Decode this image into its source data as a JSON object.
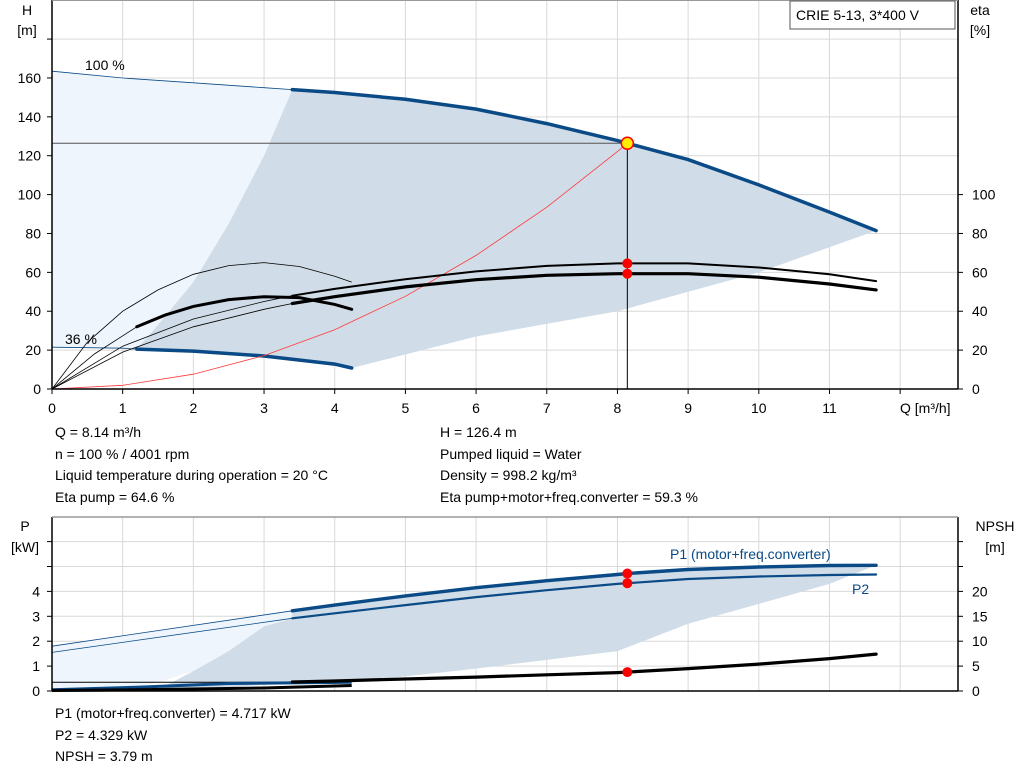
{
  "legend_box": "CRIE 5-13, 3*400 V",
  "colors": {
    "pump_curve": "#0a4a86",
    "light_area": "#eef5fd",
    "dark_area": "#d0dce7",
    "system_curve": "#ff3b3b",
    "eta_curve": "#000000",
    "marker": "#ff0000",
    "op_marker": "#ffee00",
    "grid": "#d9d9d9"
  },
  "chart_data": [
    {
      "type": "line",
      "xlabel": "Q [m³/h]",
      "ylabel": "H",
      "ylabel_unit": "[m]",
      "y2label": "eta",
      "y2label_unit": "[%]",
      "xlim": [
        0,
        12.8
      ],
      "ylim": [
        0,
        200
      ],
      "y2lim": [
        0,
        200
      ],
      "grid": true,
      "x_ticks": [
        "0",
        "1",
        "2",
        "3",
        "4",
        "5",
        "6",
        "7",
        "8",
        "9",
        "10",
        "11"
      ],
      "y_ticks": [
        "0",
        "20",
        "40",
        "60",
        "80",
        "100",
        "120",
        "140",
        "160"
      ],
      "y2_ticks": [
        "0",
        "20",
        "40",
        "60",
        "80",
        "100"
      ],
      "curve_labels": {
        "max_speed": "100 %",
        "min_speed": "36 %"
      },
      "series": [
        {
          "id": "h100",
          "x": [
            0,
            1,
            2,
            3,
            3.4,
            4,
            5,
            6,
            7,
            8,
            8.14,
            9,
            10,
            11,
            11.66
          ],
          "y": [
            163.5,
            160,
            157.5,
            155,
            154,
            152.5,
            149,
            144,
            136.5,
            127.8,
            126.4,
            118,
            105,
            91,
            81.5
          ],
          "thick_from": 3.4
        },
        {
          "id": "h36",
          "x": [
            0,
            1,
            1.2,
            2,
            3,
            4,
            4.24
          ],
          "y": [
            21.5,
            21,
            20.5,
            19.5,
            17,
            12.8,
            10.8
          ],
          "thick_from": 1.2
        },
        {
          "id": "system",
          "x": [
            0,
            1,
            2,
            3,
            4,
            5,
            6,
            7,
            8,
            8.14
          ],
          "y": [
            0,
            1.9,
            7.6,
            17.2,
            30.5,
            47.7,
            68.7,
            93.5,
            122.1,
            126.4
          ]
        },
        {
          "id": "eta_pump",
          "x": [
            0,
            1,
            2,
            3,
            3.4,
            4,
            5,
            6,
            7,
            8,
            9,
            10,
            11,
            11.66
          ],
          "y": [
            0,
            22,
            36,
            45,
            48,
            51.5,
            56.5,
            60.5,
            63.3,
            64.6,
            64.6,
            62.5,
            59,
            55.5
          ],
          "thick_from": 3.4,
          "width": 2
        },
        {
          "id": "eta_total",
          "x": [
            0,
            1,
            2,
            3,
            3.4,
            4,
            5,
            6,
            7,
            8,
            9,
            10,
            11,
            11.66
          ],
          "y": [
            0,
            19,
            32,
            41,
            44,
            47.5,
            52.5,
            56.2,
            58.5,
            59.3,
            59.3,
            57.5,
            54,
            51
          ],
          "thick_from": 3.4,
          "width": 3.2
        },
        {
          "id": "eta_pump_36",
          "x": [
            0,
            0.5,
            1,
            1.5,
            2,
            2.5,
            3,
            3.5,
            4,
            4.24
          ],
          "y": [
            0,
            24,
            40,
            51,
            59,
            63.5,
            65,
            63,
            58,
            55
          ],
          "thin": true
        },
        {
          "id": "eta_total_36",
          "x": [
            0,
            0.6,
            1.2,
            1.6,
            2,
            2.5,
            3,
            3.5,
            4,
            4.24
          ],
          "y": [
            0,
            18,
            32,
            38,
            42.5,
            46,
            47.5,
            47,
            43.5,
            41
          ],
          "thick_from": 1.2,
          "width": 3
        }
      ],
      "operating_point": {
        "Q": 8.14,
        "H": 126.4,
        "eta_pump": 64.6,
        "eta_total": 59.3
      }
    },
    {
      "type": "line",
      "ylabel": "P",
      "ylabel_unit": "[kW]",
      "y2label": "NPSH",
      "y2label_unit": "[m]",
      "ylim": [
        0,
        7
      ],
      "y2lim": [
        0,
        35
      ],
      "grid": true,
      "y_ticks": [
        "0",
        "1",
        "2",
        "3",
        "4"
      ],
      "y2_ticks": [
        "0",
        "5",
        "10",
        "15",
        "20"
      ],
      "series": [
        {
          "id": "p1",
          "name": "P1 (motor+freq.converter)",
          "x": [
            0,
            3.4,
            4,
            5,
            6,
            7,
            8,
            8.14,
            9,
            10,
            11,
            11.66
          ],
          "y": [
            1.8,
            3.22,
            3.45,
            3.82,
            4.15,
            4.43,
            4.68,
            4.717,
            4.88,
            4.98,
            5.04,
            5.05
          ],
          "thick_from": 3.4,
          "width": 3.4
        },
        {
          "id": "p2",
          "name": "P2",
          "x": [
            0,
            3.4,
            4,
            5,
            6,
            7,
            8,
            8.14,
            9,
            10,
            11,
            11.66
          ],
          "y": [
            1.55,
            2.92,
            3.12,
            3.45,
            3.77,
            4.05,
            4.3,
            4.329,
            4.5,
            4.6,
            4.66,
            4.68
          ],
          "thick_from": 3.4,
          "width": 2.2
        },
        {
          "id": "npsh",
          "x": [
            3.4,
            4,
            5,
            6,
            7,
            8,
            8.14,
            9,
            10,
            11,
            11.66
          ],
          "y_m": [
            1.8,
            2.0,
            2.4,
            2.8,
            3.25,
            3.7,
            3.79,
            4.5,
            5.4,
            6.5,
            7.4
          ],
          "width": 3.2
        }
      ],
      "operating_point": {
        "P1": 4.717,
        "P2": 4.329,
        "NPSH": 3.79
      }
    }
  ],
  "readout_top": {
    "left": [
      "Q = 8.14 m³/h",
      "n = 100 % / 4001 rpm",
      "Liquid temperature during operation = 20 °C",
      "Eta pump = 64.6 %"
    ],
    "right": [
      "H = 126.4 m",
      "Pumped liquid = Water",
      "Density = 998.2 kg/m³",
      "Eta pump+motor+freq.converter = 59.3 %"
    ]
  },
  "readout_bottom": [
    "P1 (motor+freq.converter) = 4.717 kW",
    "P2 = 4.329 kW",
    "NPSH = 3.79 m"
  ]
}
